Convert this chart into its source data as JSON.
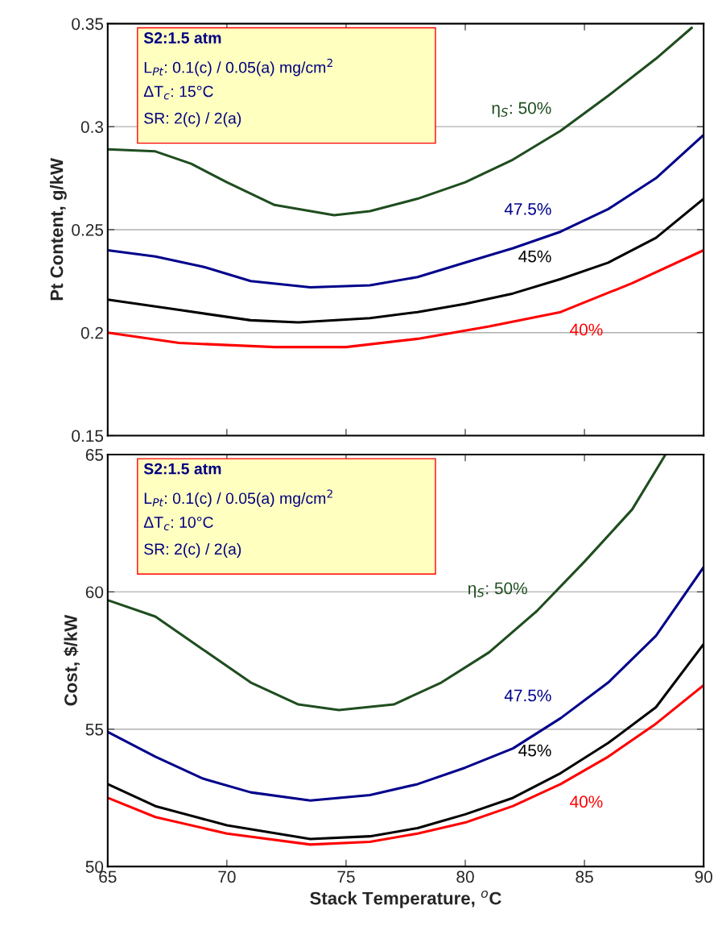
{
  "chart_data": [
    {
      "type": "line",
      "ylabel": "Pt Content, g/kW",
      "xlim": [
        65,
        90
      ],
      "xticks": [
        65,
        70,
        75,
        80,
        85,
        90
      ],
      "ylim": [
        0.15,
        0.35
      ],
      "yticks": [
        0.15,
        0.2,
        0.25,
        0.3,
        0.35
      ],
      "tick_labels": "y",
      "grid": "y",
      "legend": false,
      "annotations": [
        "S2:1.5 atm",
        "L$_{Pt}$: 0.1(c) / 0.05(a) mg/cm$^{2}$",
        "ΔT$_{c}$: 15°C",
        "SR: 2(c) / 2(a)"
      ],
      "series": [
        {
          "name": "η$_{S}$: 50%",
          "color": "#1f4d1f",
          "x": [
            65,
            67,
            68.5,
            70,
            72,
            74.5,
            76,
            78,
            80,
            82,
            84,
            86,
            88,
            89.5
          ],
          "values": [
            0.289,
            0.288,
            0.282,
            0.273,
            0.262,
            0.257,
            0.259,
            0.265,
            0.273,
            0.284,
            0.298,
            0.315,
            0.333,
            0.348
          ]
        },
        {
          "name": "47.5%",
          "color": "#00008b",
          "x": [
            65,
            67,
            69,
            71,
            73.5,
            76,
            78,
            80,
            82,
            84,
            86,
            88,
            90
          ],
          "values": [
            0.24,
            0.237,
            0.232,
            0.225,
            0.222,
            0.223,
            0.227,
            0.234,
            0.241,
            0.249,
            0.26,
            0.275,
            0.296
          ]
        },
        {
          "name": "45%",
          "color": "#000000",
          "x": [
            65,
            68,
            71,
            73,
            76,
            78,
            80,
            82,
            84,
            86,
            88,
            90
          ],
          "values": [
            0.216,
            0.211,
            0.206,
            0.205,
            0.207,
            0.21,
            0.214,
            0.219,
            0.226,
            0.234,
            0.246,
            0.265
          ]
        },
        {
          "name": "40%",
          "color": "#ff0000",
          "x": [
            65,
            68,
            72,
            75,
            78,
            81,
            84,
            87,
            90
          ],
          "values": [
            0.2,
            0.195,
            0.193,
            0.193,
            0.197,
            0.203,
            0.21,
            0.224,
            0.24
          ]
        }
      ]
    },
    {
      "type": "line",
      "ylabel": "Cost, $/kW",
      "xlabel": "Stack Temperature, $^{o}$C",
      "xlim": [
        65,
        90
      ],
      "xticks": [
        65,
        70,
        75,
        80,
        85,
        90
      ],
      "ylim": [
        50,
        65
      ],
      "yticks": [
        50,
        55,
        60,
        65
      ],
      "grid": "y",
      "legend": false,
      "annotations": [
        "S2:1.5 atm",
        "L$_{Pt}$: 0.1(c) / 0.05(a) mg/cm$^{2}$",
        "ΔT$_{c}$: 10°C",
        "SR: 2(c) / 2(a)"
      ],
      "series": [
        {
          "name": "η$_{S}$: 50%",
          "color": "#1f4d1f",
          "x": [
            65,
            67,
            69,
            71,
            73,
            74.7,
            77,
            79,
            81,
            83,
            85,
            87,
            88.4
          ],
          "values": [
            59.7,
            59.1,
            57.9,
            56.7,
            55.9,
            55.7,
            55.9,
            56.7,
            57.8,
            59.3,
            61.1,
            63.0,
            65.0
          ]
        },
        {
          "name": "47.5%",
          "color": "#00008b",
          "x": [
            65,
            67,
            69,
            71,
            73.5,
            76,
            78,
            80,
            82,
            84,
            86,
            88,
            90
          ],
          "values": [
            54.9,
            54.0,
            53.2,
            52.7,
            52.4,
            52.6,
            53.0,
            53.6,
            54.3,
            55.4,
            56.7,
            58.4,
            60.9
          ]
        },
        {
          "name": "45%",
          "color": "#000000",
          "x": [
            65,
            67,
            70,
            73.5,
            76,
            78,
            80,
            82,
            84,
            86,
            88,
            90
          ],
          "values": [
            53.0,
            52.2,
            51.5,
            51.0,
            51.1,
            51.4,
            51.9,
            52.5,
            53.4,
            54.5,
            55.8,
            58.1
          ]
        },
        {
          "name": "40%",
          "color": "#ff0000",
          "x": [
            65,
            67,
            70,
            73.5,
            76,
            78,
            80,
            82,
            84,
            86,
            88,
            90
          ],
          "values": [
            52.5,
            51.8,
            51.2,
            50.8,
            50.9,
            51.2,
            51.6,
            52.2,
            53.0,
            54.0,
            55.2,
            56.6
          ]
        }
      ]
    }
  ]
}
